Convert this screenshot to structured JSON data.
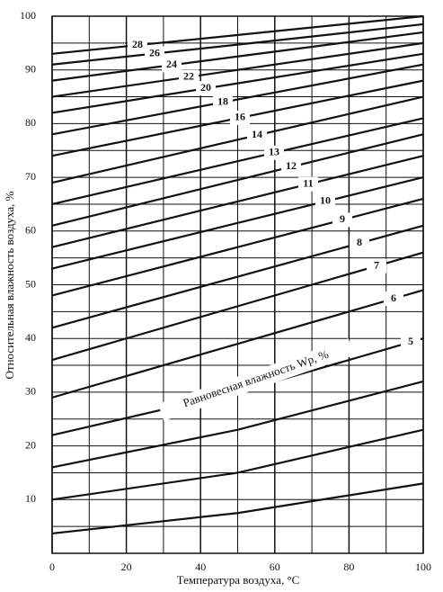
{
  "chart_data": {
    "type": "line",
    "xlabel": "Температура воздуха, °С",
    "ylabel": "Относительная влажность воздуха, %",
    "annotation": "Равновесная влажность Wр, %",
    "x": [
      0,
      50,
      100
    ],
    "xlim": [
      0,
      100
    ],
    "ylim": [
      0,
      100
    ],
    "xticks": [
      0,
      20,
      40,
      60,
      80,
      100
    ],
    "yticks": [
      10,
      20,
      30,
      40,
      50,
      60,
      70,
      80,
      90,
      100
    ],
    "x_minor_grid": [
      10,
      30,
      50,
      70,
      90
    ],
    "y_minor_grid": [
      5,
      15,
      25,
      35,
      45,
      55,
      65,
      75,
      85,
      95
    ],
    "grid": true,
    "color": "#111",
    "series": [
      {
        "name": "28",
        "values": [
          93,
          96.5,
          100
        ]
      },
      {
        "name": "26",
        "values": [
          91,
          94.7,
          98.5
        ]
      },
      {
        "name": "24",
        "values": [
          88,
          92.5,
          97
        ]
      },
      {
        "name": "22",
        "values": [
          85,
          90,
          95
        ]
      },
      {
        "name": "20",
        "values": [
          82,
          87.5,
          93
        ]
      },
      {
        "name": "18",
        "values": [
          78,
          84.5,
          91
        ]
      },
      {
        "name": "16",
        "values": [
          74,
          81,
          88
        ]
      },
      {
        "name": "14",
        "values": [
          69,
          77,
          85
        ]
      },
      {
        "name": "13",
        "values": [
          65,
          73,
          81
        ]
      },
      {
        "name": "12",
        "values": [
          61,
          69.5,
          78
        ]
      },
      {
        "name": "11",
        "values": [
          57,
          65.5,
          74
        ]
      },
      {
        "name": "10",
        "values": [
          53,
          61.5,
          70
        ]
      },
      {
        "name": "9",
        "values": [
          48,
          57,
          66
        ]
      },
      {
        "name": "8",
        "values": [
          42,
          51.5,
          61
        ]
      },
      {
        "name": "7",
        "values": [
          36,
          46,
          56
        ]
      },
      {
        "name": "6",
        "values": [
          29,
          39,
          49
        ]
      },
      {
        "name": "5",
        "values": [
          22,
          30,
          40
        ]
      },
      {
        "values": [
          16,
          23,
          32
        ]
      },
      {
        "values": [
          10,
          15,
          23
        ]
      },
      {
        "values": [
          3.7,
          7.5,
          13
        ]
      }
    ]
  }
}
